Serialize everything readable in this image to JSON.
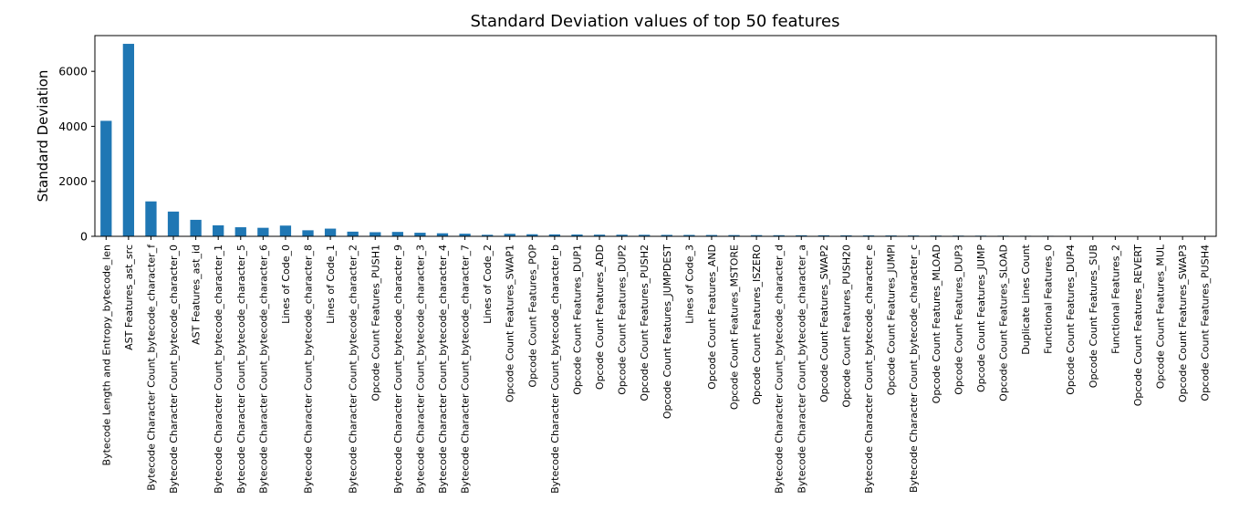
{
  "chart_data": {
    "type": "bar",
    "title": "Standard Deviation values of top 50 features",
    "xlabel": "",
    "ylabel": "Standard Deviation",
    "ylim": [
      0,
      7300
    ],
    "yticks": [
      0,
      2000,
      4000,
      6000
    ],
    "grid": false,
    "bar_color": "#1f77b4",
    "categories": [
      "Bytecode Length and Entropy_bytecode_len",
      "AST Features_ast_src",
      "Bytecode Character Count_bytecode_character_f",
      "Bytecode Character Count_bytecode_character_0",
      "AST Features_ast_id",
      "Bytecode Character Count_bytecode_character_1",
      "Bytecode Character Count_bytecode_character_5",
      "Bytecode Character Count_bytecode_character_6",
      "Lines of Code_0",
      "Bytecode Character Count_bytecode_character_8",
      "Lines of Code_1",
      "Bytecode Character Count_bytecode_character_2",
      "Opcode Count Features_PUSH1",
      "Bytecode Character Count_bytecode_character_9",
      "Bytecode Character Count_bytecode_character_3",
      "Bytecode Character Count_bytecode_character_4",
      "Bytecode Character Count_bytecode_character_7",
      "Lines of Code_2",
      "Opcode Count Features_SWAP1",
      "Opcode Count Features_POP",
      "Bytecode Character Count_bytecode_character_b",
      "Opcode Count Features_DUP1",
      "Opcode Count Features_ADD",
      "Opcode Count Features_DUP2",
      "Opcode Count Features_PUSH2",
      "Opcode Count Features_JUMPDEST",
      "Lines of Code_3",
      "Opcode Count Features_AND",
      "Opcode Count Features_MSTORE",
      "Opcode Count Features_ISZERO",
      "Bytecode Character Count_bytecode_character_d",
      "Bytecode Character Count_bytecode_character_a",
      "Opcode Count Features_SWAP2",
      "Opcode Count Features_PUSH20",
      "Bytecode Character Count_bytecode_character_e",
      "Opcode Count Features_JUMPI",
      "Bytecode Character Count_bytecode_character_c",
      "Opcode Count Features_MLOAD",
      "Opcode Count Features_DUP3",
      "Opcode Count Features_JUMP",
      "Opcode Count Features_SLOAD",
      "Duplicate Lines Count",
      "Functional Features_0",
      "Opcode Count Features_DUP4",
      "Opcode Count Features_SUB",
      "Functional Features_2",
      "Opcode Count Features_REVERT",
      "Opcode Count Features_MUL",
      "Opcode Count Features_SWAP3",
      "Opcode Count Features_PUSH4"
    ],
    "values": [
      4200,
      7000,
      1270,
      900,
      600,
      400,
      330,
      310,
      390,
      220,
      280,
      170,
      150,
      160,
      130,
      110,
      95,
      55,
      90,
      75,
      70,
      65,
      60,
      58,
      55,
      52,
      50,
      48,
      45,
      43,
      40,
      38,
      37,
      35,
      33,
      31,
      29,
      27,
      25,
      24,
      22,
      20,
      19,
      18,
      17,
      16,
      15,
      14,
      13,
      12
    ]
  }
}
